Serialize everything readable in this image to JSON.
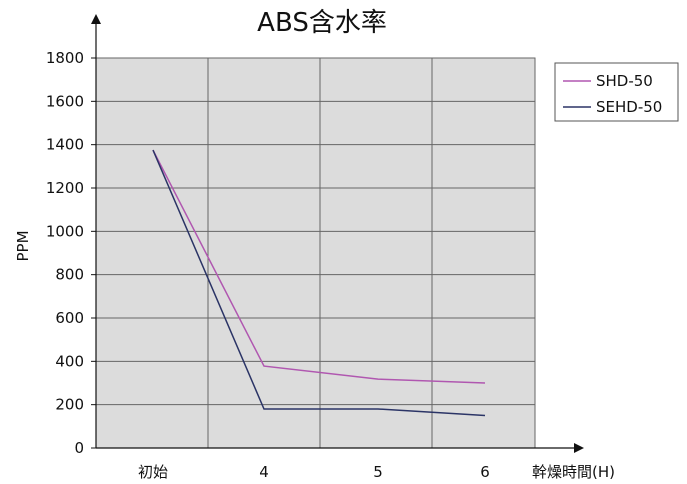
{
  "chart_data": {
    "type": "line",
    "title": "ABS含水率",
    "xlabel": "幹燥時間(H)",
    "ylabel": "PPM",
    "categories": [
      "初始",
      "4",
      "5",
      "6"
    ],
    "ylim": [
      0,
      1800
    ],
    "yticks": [
      0,
      200,
      400,
      600,
      800,
      1000,
      1200,
      1400,
      1600,
      1800
    ],
    "grid": true,
    "legend_position": "top-right",
    "series": [
      {
        "name": "SHD-50",
        "color": "#b057b0",
        "values": [
          1375,
          378,
          318,
          300
        ]
      },
      {
        "name": "SEHD-50",
        "color": "#2b3466",
        "values": [
          1375,
          180,
          180,
          150
        ]
      }
    ]
  }
}
